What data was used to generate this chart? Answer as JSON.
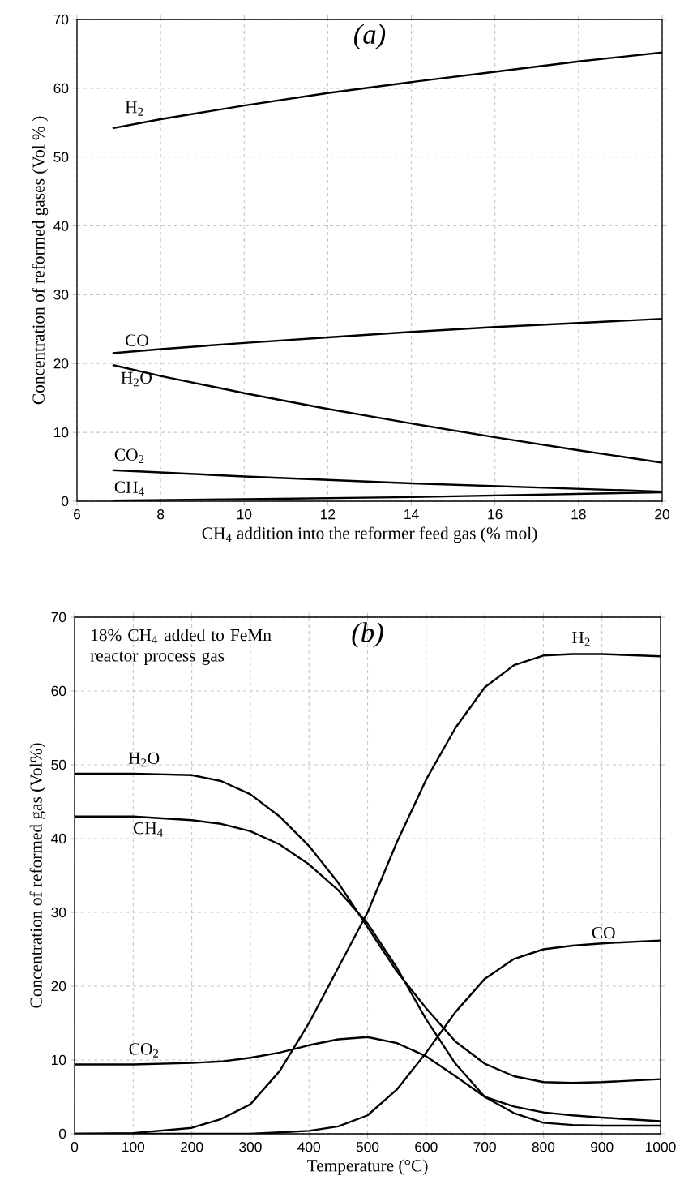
{
  "chart_data": [
    {
      "type": "line",
      "title": "(a)",
      "xlabel": "CH$_{4}$ addition into the reformer feed gas (% mol)",
      "ylabel": "Concentration of reformed gases (Vol % )",
      "xlim": [
        6,
        20
      ],
      "xticks": [
        6,
        8,
        10,
        12,
        14,
        16,
        18,
        20
      ],
      "ylim": [
        0,
        70
      ],
      "yticks": [
        0,
        10,
        20,
        30,
        40,
        50,
        60,
        70
      ],
      "grid": true,
      "marker": "none",
      "line_style": "solid",
      "series": [
        {
          "name": "H$_{2}$",
          "color": "#000000",
          "x": [
            6.85,
            8,
            10,
            12,
            14,
            16,
            18,
            20
          ],
          "values": [
            54.2,
            55.5,
            57.5,
            59.3,
            60.9,
            62.4,
            63.9,
            65.2
          ]
        },
        {
          "name": "CO",
          "color": "#000000",
          "x": [
            6.85,
            8,
            10,
            12,
            14,
            16,
            18,
            20
          ],
          "values": [
            21.5,
            22.1,
            23.0,
            23.8,
            24.6,
            25.3,
            25.9,
            26.5
          ]
        },
        {
          "name": "H$_{2}$O",
          "color": "#000000",
          "x": [
            6.85,
            8,
            10,
            12,
            14,
            16,
            18,
            20
          ],
          "values": [
            19.8,
            18.2,
            15.7,
            13.4,
            11.3,
            9.3,
            7.4,
            5.6
          ]
        },
        {
          "name": "CO$_{2}$",
          "color": "#000000",
          "x": [
            6.85,
            10,
            14,
            20
          ],
          "values": [
            4.5,
            3.6,
            2.6,
            1.4
          ]
        },
        {
          "name": "CH$_{4}$",
          "color": "#000000",
          "x": [
            6.85,
            10,
            14,
            20
          ],
          "values": [
            0.1,
            0.3,
            0.6,
            1.3
          ]
        }
      ]
    },
    {
      "type": "line",
      "title": "(b)",
      "xlabel": "Temperature (°C)",
      "ylabel": "Concentration of reformed gas (Vol%)",
      "xlim": [
        0,
        1000
      ],
      "xticks": [
        0,
        100,
        200,
        300,
        400,
        500,
        600,
        700,
        800,
        900,
        1000
      ],
      "ylim": [
        0,
        70
      ],
      "yticks": [
        0,
        10,
        20,
        30,
        40,
        50,
        60,
        70
      ],
      "grid": true,
      "marker": "none",
      "line_style": "solid",
      "series": [
        {
          "name": "H$_{2}$",
          "color": "#000000",
          "x": [
            0,
            100,
            200,
            250,
            300,
            350,
            400,
            450,
            500,
            550,
            600,
            650,
            700,
            750,
            800,
            850,
            900,
            1000
          ],
          "values": [
            0,
            0.1,
            0.8,
            2,
            4,
            8.5,
            15,
            22.5,
            30,
            39.5,
            48,
            55,
            60.5,
            63.5,
            64.8,
            65,
            65,
            64.7
          ]
        },
        {
          "name": "H$_{2}$O",
          "color": "#000000",
          "x": [
            0,
            100,
            200,
            250,
            300,
            350,
            400,
            450,
            500,
            550,
            600,
            650,
            700,
            750,
            800,
            850,
            900,
            1000
          ],
          "values": [
            48.8,
            48.8,
            48.6,
            47.8,
            46,
            43,
            39,
            34,
            28,
            22,
            17,
            12.5,
            9.5,
            7.8,
            7,
            6.9,
            7,
            7.4
          ]
        },
        {
          "name": "CH$_{4}$",
          "color": "#000000",
          "x": [
            0,
            100,
            200,
            250,
            300,
            350,
            400,
            450,
            500,
            550,
            600,
            650,
            700,
            750,
            800,
            850,
            900,
            1000
          ],
          "values": [
            43,
            43,
            42.5,
            42,
            41,
            39.2,
            36.5,
            33,
            28.5,
            22.5,
            15.5,
            9.5,
            5,
            2.8,
            1.5,
            1.2,
            1.1,
            1.1
          ]
        },
        {
          "name": "CO$_{2}$",
          "color": "#000000",
          "x": [
            0,
            100,
            200,
            250,
            300,
            350,
            400,
            450,
            500,
            550,
            600,
            650,
            700,
            750,
            800,
            850,
            900,
            1000
          ],
          "values": [
            9.4,
            9.4,
            9.6,
            9.8,
            10.3,
            11,
            12,
            12.8,
            13.1,
            12.3,
            10.5,
            7.8,
            5,
            3.7,
            2.9,
            2.5,
            2.2,
            1.7
          ]
        },
        {
          "name": "CO",
          "color": "#000000",
          "x": [
            0,
            100,
            200,
            300,
            350,
            400,
            450,
            500,
            550,
            600,
            650,
            700,
            750,
            800,
            850,
            900,
            1000
          ],
          "values": [
            0,
            0,
            0,
            0,
            0.2,
            0.4,
            1,
            2.5,
            6,
            11,
            16.5,
            21,
            23.7,
            25,
            25.5,
            25.8,
            26.2
          ]
        }
      ],
      "annotations": [
        "18% CH$_{4}$ added to FeMn reactor process gas"
      ]
    }
  ]
}
